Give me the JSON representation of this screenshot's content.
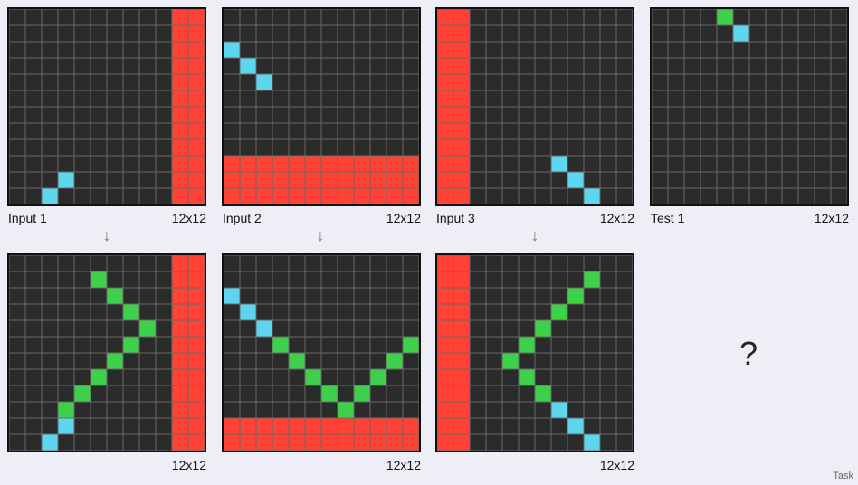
{
  "colors": {
    "0": "#2b2b2b",
    "1": "#ff4136",
    "2": "#5cd7ef",
    "3": "#3dd14b"
  },
  "icons": {
    "arrow": "down-arrow-icon"
  },
  "pairs": [
    {
      "input_label": "Input 1",
      "input_size": "12x12",
      "output_size": "12x12",
      "arrow": "↓",
      "input": [
        "000000000011",
        "000000000011",
        "000000000011",
        "000000000011",
        "000000000011",
        "000000000011",
        "000000000011",
        "000000000011",
        "000000000011",
        "000000000011",
        "000200000011",
        "002000000011"
      ],
      "output": [
        "000000000011",
        "000003000011",
        "000000300011",
        "000000030011",
        "000000003011",
        "000000030011",
        "000000300011",
        "000003000011",
        "000030000011",
        "000300000011",
        "000200000011",
        "002000000011"
      ]
    },
    {
      "input_label": "Input 2",
      "input_size": "12x12",
      "output_size": "12x12",
      "arrow": "↓",
      "input": [
        "000000000000",
        "000000000000",
        "200000000000",
        "020000000000",
        "002000000000",
        "000000000000",
        "000000000000",
        "000000000000",
        "000000000000",
        "111111111111",
        "111111111111",
        "111111111111"
      ],
      "output": [
        "000000000000",
        "000000000000",
        "200000000000",
        "020000000000",
        "002000000000",
        "000300000003",
        "000030000030",
        "000003000300",
        "000000303000",
        "000000030000",
        "111111111111",
        "111111111111"
      ]
    },
    {
      "input_label": "Input 3",
      "input_size": "12x12",
      "output_size": "12x12",
      "arrow": "↓",
      "input": [
        "110000000000",
        "110000000000",
        "110000000000",
        "110000000000",
        "110000000000",
        "110000000000",
        "110000000000",
        "110000000000",
        "110000000000",
        "110000020000",
        "110000002000",
        "110000000200"
      ],
      "output": [
        "110000000000",
        "110000000300",
        "110000003000",
        "110000030000",
        "110000300000",
        "110003000000",
        "110030000000",
        "110003000000",
        "110000300000",
        "110000020000",
        "110000002000",
        "110000000200"
      ]
    }
  ],
  "test": {
    "label": "Test 1",
    "size": "12x12",
    "input": [
      "000030000000",
      "000002000000",
      "000000000000",
      "000000000000",
      "000000000000",
      "000000000000",
      "000000000000",
      "000000000000",
      "000000000000",
      "000000000000",
      "000000000000",
      "000000000000"
    ],
    "answer": "?"
  },
  "footer": "Task"
}
